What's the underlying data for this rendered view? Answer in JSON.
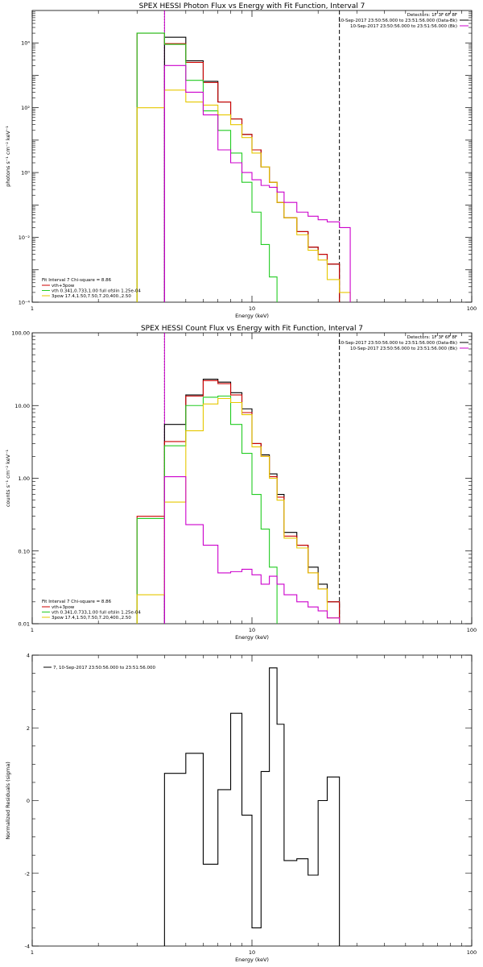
{
  "chart_data": [
    {
      "type": "line",
      "title": "SPEX HESSI Photon Flux vs Energy with Fit Function, Interval 7",
      "xlabel": "Energy (keV)",
      "ylabel": "photons s⁻¹ cm⁻² keV⁻¹",
      "xscale": "log",
      "yscale": "log",
      "xlim": [
        1,
        100
      ],
      "ylim": [
        0.0001,
        100000
      ],
      "xticks": [
        {
          "v": 1,
          "label": "1"
        },
        {
          "v": 10,
          "label": "10"
        },
        {
          "v": 100,
          "label": "100"
        }
      ],
      "yticks": [
        {
          "v": 0.0001,
          "label": "10⁻⁴"
        },
        {
          "v": 0.01,
          "label": "10⁻²"
        },
        {
          "v": 1,
          "label": "10⁰"
        },
        {
          "v": 100,
          "label": "10²"
        },
        {
          "v": 10000,
          "label": "10⁴"
        }
      ],
      "vlines": [
        {
          "x": 4,
          "style": "dotted",
          "color": "#000000"
        },
        {
          "x": 4,
          "style": "solid",
          "color": "#cc00cc"
        },
        {
          "x": 25,
          "style": "dashed",
          "color": "#000000"
        }
      ],
      "header_lines": [
        "Detectors: 1F 3F 6F 8F",
        "10-Sep-2017 23:50:56.000 to 23:51:56.000 (Data-Bk)",
        "10-Sep-2017 23:50:56.000 to 23:51:56.000 (Bk)"
      ],
      "fit_label": "Fit Interval 7   Chi-square = 8.86",
      "legend": [
        {
          "label": "vth+3pow",
          "color": "#cc0000"
        },
        {
          "label": "vth 0.341,0.733,1.00  full ofslin 1.25e-04",
          "color": "#22cc22"
        },
        {
          "label": "3pow 17.4,1.50,7.50,7.20,400.,2.50",
          "color": "#e6c800"
        }
      ],
      "series": [
        {
          "name": "black",
          "color": "#000000",
          "edges": [
            4,
            5,
            6,
            7,
            8,
            9,
            10,
            11,
            12,
            13,
            14,
            16,
            18,
            20,
            22,
            25
          ],
          "values": [
            15000,
            2800,
            650,
            150,
            45,
            15,
            5,
            1.5,
            0.5,
            0.12,
            0.04,
            0.015,
            0.005,
            0.003,
            0.0015
          ]
        },
        {
          "name": "red",
          "color": "#cc0000",
          "edges": [
            3,
            4,
            5,
            6,
            7,
            8,
            9,
            10,
            11,
            12,
            13,
            14,
            16,
            18,
            20,
            22,
            25
          ],
          "values": [
            20000,
            9500,
            2500,
            600,
            150,
            45,
            15,
            5,
            1.5,
            0.5,
            0.12,
            0.04,
            0.015,
            0.005,
            0.003,
            0.0015
          ]
        },
        {
          "name": "green",
          "color": "#22cc22",
          "edges": [
            3,
            4,
            5,
            6,
            7,
            8,
            9,
            10,
            11,
            12,
            13
          ],
          "values": [
            20000,
            9000,
            700,
            80,
            20,
            4,
            0.5,
            0.06,
            0.006,
            0.0006
          ]
        },
        {
          "name": "yellow",
          "color": "#e6c800",
          "edges": [
            3,
            4,
            5,
            6,
            7,
            8,
            9,
            10,
            11,
            12,
            13,
            14,
            16,
            18,
            20,
            22,
            25,
            28
          ],
          "values": [
            100,
            350,
            150,
            120,
            60,
            30,
            12,
            4,
            1.5,
            0.5,
            0.12,
            0.04,
            0.012,
            0.004,
            0.002,
            0.0005,
            0.0002
          ]
        },
        {
          "name": "magenta",
          "color": "#cc00cc",
          "edges": [
            4,
            5,
            6,
            7,
            8,
            9,
            10,
            11,
            12,
            13,
            14,
            16,
            18,
            20,
            22,
            25,
            28
          ],
          "values": [
            2000,
            300,
            60,
            5,
            2,
            1,
            0.6,
            0.4,
            0.35,
            0.25,
            0.12,
            0.06,
            0.045,
            0.035,
            0.03,
            0.02
          ]
        }
      ]
    },
    {
      "type": "line",
      "title": "SPEX HESSI Count Flux vs Energy with Fit Function, Interval 7",
      "xlabel": "Energy (keV)",
      "ylabel": "counts s⁻¹ cm⁻² keV⁻¹",
      "xscale": "log",
      "yscale": "log",
      "xlim": [
        1,
        100
      ],
      "ylim": [
        0.01,
        100
      ],
      "xticks": [
        {
          "v": 1,
          "label": "1"
        },
        {
          "v": 10,
          "label": "10"
        },
        {
          "v": 100,
          "label": "100"
        }
      ],
      "yticks": [
        {
          "v": 0.01,
          "label": "0.01"
        },
        {
          "v": 0.1,
          "label": "0.10"
        },
        {
          "v": 1,
          "label": "1.00"
        },
        {
          "v": 10,
          "label": "10.00"
        },
        {
          "v": 100,
          "label": "100.00"
        }
      ],
      "vlines": [
        {
          "x": 4,
          "style": "dotted",
          "color": "#000000"
        },
        {
          "x": 4,
          "style": "solid",
          "color": "#cc00cc"
        },
        {
          "x": 25,
          "style": "dashed",
          "color": "#000000"
        }
      ],
      "header_lines": [
        "Detectors: 1F 3F 6F 8F",
        "10-Sep-2017 23:50:56.000 to 23:51:56.000 (Data-Bk)",
        "10-Sep-2017 23:50:56.000 to 23:51:56.000 (Bk)"
      ],
      "fit_label": "Fit Interval 7   Chi-square = 8.86",
      "legend": [
        {
          "label": "vth+3pow",
          "color": "#cc0000"
        },
        {
          "label": "vth 0.341,0.733,1.00  full ofslin 1.25e-04",
          "color": "#22cc22"
        },
        {
          "label": "3pow 17.4,1.50,7.50,7.20,400.,2.50",
          "color": "#e6c800"
        }
      ],
      "series": [
        {
          "name": "black",
          "color": "#000000",
          "edges": [
            4,
            5,
            6,
            7,
            8,
            9,
            10,
            11,
            12,
            13,
            14,
            16,
            18,
            20,
            22,
            25
          ],
          "values": [
            5.5,
            14,
            23,
            21,
            15,
            9,
            3,
            2.1,
            1.15,
            0.6,
            0.18,
            0.12,
            0.06,
            0.035,
            0.02
          ]
        },
        {
          "name": "red",
          "color": "#cc0000",
          "edges": [
            3,
            4,
            5,
            6,
            7,
            8,
            9,
            10,
            11,
            12,
            13,
            14,
            16,
            18,
            20,
            22,
            25
          ],
          "values": [
            0.3,
            3.2,
            13.5,
            22,
            20,
            14,
            8,
            3,
            2,
            1.05,
            0.55,
            0.16,
            0.12,
            0.05,
            0.03,
            0.02
          ]
        },
        {
          "name": "green",
          "color": "#22cc22",
          "edges": [
            3,
            4,
            5,
            6,
            7,
            8,
            9,
            10,
            11,
            12,
            13
          ],
          "values": [
            0.28,
            2.8,
            10,
            13,
            13.5,
            5.5,
            2.2,
            0.6,
            0.2,
            0.06
          ]
        },
        {
          "name": "yellow",
          "color": "#e6c800",
          "edges": [
            3,
            4,
            5,
            6,
            7,
            8,
            9,
            10,
            11,
            12,
            13,
            14,
            16,
            18,
            20,
            22,
            25
          ],
          "values": [
            0.025,
            0.47,
            4.5,
            10.5,
            12.5,
            11,
            7.5,
            2.7,
            2,
            1,
            0.5,
            0.15,
            0.11,
            0.05,
            0.03,
            0.012
          ]
        },
        {
          "name": "magenta",
          "color": "#cc00cc",
          "edges": [
            4,
            5,
            6,
            7,
            8,
            9,
            10,
            11,
            12,
            13,
            14,
            16,
            18,
            20,
            22,
            25
          ],
          "values": [
            1.05,
            0.23,
            0.12,
            0.05,
            0.052,
            0.056,
            0.047,
            0.035,
            0.045,
            0.035,
            0.025,
            0.02,
            0.017,
            0.015,
            0.012
          ]
        }
      ]
    },
    {
      "type": "line",
      "title": "",
      "xlabel": "Energy (keV)",
      "ylabel": "Normalized Residuals (sigma)",
      "xscale": "log",
      "yscale": "linear",
      "xlim": [
        1,
        100
      ],
      "ylim": [
        -4,
        4
      ],
      "xticks": [
        {
          "v": 1,
          "label": "1"
        },
        {
          "v": 10,
          "label": "10"
        },
        {
          "v": 100,
          "label": "100"
        }
      ],
      "yticks": [
        {
          "v": -4,
          "label": "-4"
        },
        {
          "v": -2,
          "label": "-2"
        },
        {
          "v": 0,
          "label": "0"
        },
        {
          "v": 2,
          "label": "2"
        },
        {
          "v": 4,
          "label": "4"
        }
      ],
      "vlines": [],
      "legend": [
        {
          "label": "7, 10-Sep-2017 23:50:56.000 to 23:51:56.000",
          "color": "#000000"
        }
      ],
      "series": [
        {
          "name": "residuals",
          "color": "#000000",
          "edges": [
            4,
            5,
            6,
            7,
            8,
            9,
            10,
            11,
            12,
            13,
            14,
            16,
            18,
            20,
            22,
            25
          ],
          "values": [
            0.75,
            1.3,
            -1.75,
            0.3,
            2.4,
            -0.4,
            -3.5,
            0.8,
            3.65,
            2.1,
            -1.65,
            -1.6,
            -2.05,
            0,
            0.65
          ]
        }
      ]
    }
  ]
}
